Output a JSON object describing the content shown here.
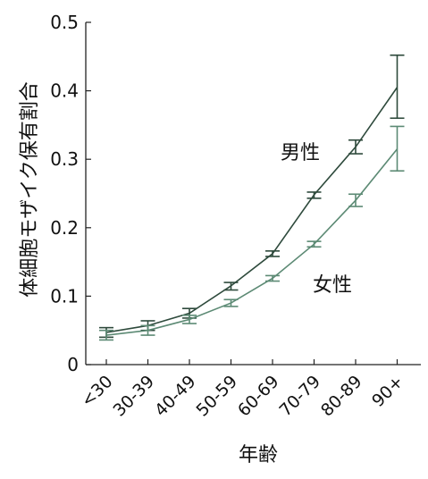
{
  "chart_data": {
    "type": "line",
    "categories": [
      "<30",
      "30-39",
      "40-49",
      "50-59",
      "60-69",
      "70-79",
      "80-89",
      "90+"
    ],
    "ylabel": "体細胞モザイク保有割合",
    "xlabel": "年齢",
    "ylim": [
      0,
      0.5
    ],
    "yticks": [
      "0",
      "0.1",
      "0.2",
      "0.3",
      "0.4",
      "0.5"
    ],
    "grid": false,
    "series": [
      {
        "name": "男性",
        "color": "#2e4a3c",
        "values": [
          0.047,
          0.057,
          0.075,
          0.115,
          0.162,
          0.248,
          0.318,
          0.405
        ],
        "err_low": [
          0.04,
          0.05,
          0.068,
          0.109,
          0.158,
          0.243,
          0.308,
          0.36
        ],
        "err_high": [
          0.054,
          0.064,
          0.082,
          0.12,
          0.166,
          0.252,
          0.328,
          0.452
        ]
      },
      {
        "name": "女性",
        "color": "#5c8a74",
        "values": [
          0.043,
          0.05,
          0.066,
          0.09,
          0.126,
          0.176,
          0.24,
          0.315
        ],
        "err_low": [
          0.036,
          0.043,
          0.06,
          0.085,
          0.122,
          0.172,
          0.231,
          0.283
        ],
        "err_high": [
          0.05,
          0.057,
          0.072,
          0.095,
          0.13,
          0.18,
          0.249,
          0.348
        ]
      }
    ]
  }
}
